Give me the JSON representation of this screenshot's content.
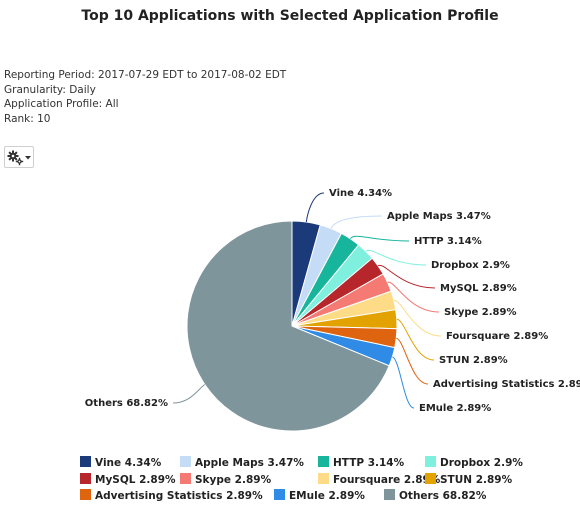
{
  "title": "Top 10 Applications with Selected Application Profile",
  "meta": {
    "reporting_period": "Reporting Period: 2017-07-29 EDT to 2017-08-02 EDT",
    "granularity": "Granularity: Daily",
    "application_profile": "Application Profile: All",
    "rank": "Rank: 10"
  },
  "toolbar": {
    "settings_icon": "gear-icon"
  },
  "chart_data": {
    "type": "pie",
    "title": "Top 10 Applications with Selected Application Profile",
    "legend_position": "bottom",
    "slices": [
      {
        "name": "Vine",
        "value": 4.34,
        "label": "Vine 4.34%",
        "color": "#1b3a7a"
      },
      {
        "name": "Apple Maps",
        "value": 3.47,
        "label": "Apple Maps 3.47%",
        "color": "#c4dcf5"
      },
      {
        "name": "HTTP",
        "value": 3.14,
        "label": "HTTP 3.14%",
        "color": "#17b59b"
      },
      {
        "name": "Dropbox",
        "value": 2.9,
        "label": "Dropbox 2.9%",
        "color": "#7ef0dd"
      },
      {
        "name": "MySQL",
        "value": 2.89,
        "label": "MySQL 2.89%",
        "color": "#b6262a"
      },
      {
        "name": "Skype",
        "value": 2.89,
        "label": "Skype 2.89%",
        "color": "#f47a73"
      },
      {
        "name": "Foursquare",
        "value": 2.89,
        "label": "Foursquare 2.89%",
        "color": "#fddb87"
      },
      {
        "name": "STUN",
        "value": 2.89,
        "label": "STUN 2.89%",
        "color": "#e2a300"
      },
      {
        "name": "Advertising Statistics",
        "value": 2.89,
        "label": "Advertising Statistics 2.89%",
        "color": "#de6410"
      },
      {
        "name": "EMule",
        "value": 2.89,
        "label": "EMule 2.89%",
        "color": "#2f8be6"
      },
      {
        "name": "Others",
        "value": 68.82,
        "label": "Others 68.82%",
        "color": "#7e959b"
      }
    ]
  }
}
